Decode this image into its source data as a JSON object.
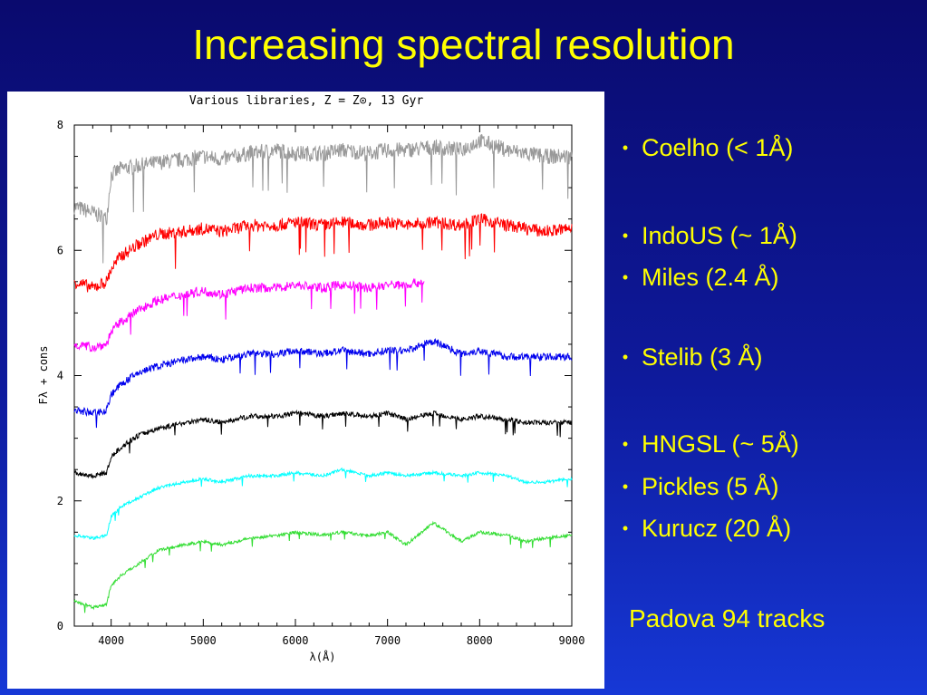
{
  "slide": {
    "title": "Increasing spectral resolution",
    "footer": "Padova 94 tracks"
  },
  "bullets": [
    "Coelho (< 1Å)",
    "IndoUS (~ 1Å)",
    "Miles (2.4 Å)",
    "Stelib (3 Å)",
    "HNGSL (~ 5Å)",
    "Pickles (5 Å)",
    "Kurucz (20 Å)"
  ],
  "colors": {
    "title": "#ffff00",
    "background": "#0e1a9c"
  },
  "chart_data": {
    "type": "line",
    "title": "Various libraries, Z = Z⊙, 13 Gyr",
    "xlabel": "λ(Å)",
    "ylabel": "Fλ + cons",
    "xlim": [
      3600,
      9000
    ],
    "ylim": [
      0,
      8
    ],
    "xticks": [
      4000,
      5000,
      6000,
      7000,
      8000,
      9000
    ],
    "yticks": [
      0,
      2,
      4,
      6,
      8
    ],
    "series": [
      {
        "color": "#999999",
        "noise": 0.25,
        "x": [
          3600,
          3800,
          3950,
          4000,
          4100,
          4300,
          4500,
          4800,
          5000,
          5200,
          5500,
          5800,
          6000,
          6300,
          6500,
          6800,
          7000,
          7200,
          7500,
          7800,
          8000,
          8300,
          8500,
          8700,
          9000
        ],
        "y": [
          6.7,
          6.6,
          6.5,
          7.2,
          7.3,
          7.35,
          7.4,
          7.45,
          7.5,
          7.45,
          7.55,
          7.6,
          7.55,
          7.55,
          7.6,
          7.55,
          7.6,
          7.6,
          7.65,
          7.6,
          7.75,
          7.6,
          7.55,
          7.5,
          7.5
        ]
      },
      {
        "color": "#ff0000",
        "noise": 0.2,
        "x": [
          3600,
          3800,
          3950,
          4000,
          4100,
          4300,
          4500,
          4800,
          5000,
          5200,
          5500,
          5800,
          6000,
          6300,
          6500,
          6800,
          7000,
          7200,
          7500,
          7800,
          8000,
          8300,
          8500,
          8700,
          9000
        ],
        "y": [
          5.5,
          5.4,
          5.5,
          5.7,
          5.9,
          6.1,
          6.25,
          6.3,
          6.35,
          6.3,
          6.4,
          6.4,
          6.45,
          6.4,
          6.45,
          6.4,
          6.45,
          6.4,
          6.45,
          6.4,
          6.5,
          6.4,
          6.35,
          6.3,
          6.35
        ]
      },
      {
        "color": "#ff00ff",
        "noise": 0.15,
        "x": [
          3600,
          3800,
          3950,
          4000,
          4100,
          4300,
          4500,
          4800,
          5000,
          5200,
          5500,
          5800,
          6000,
          6300,
          6500,
          6800,
          7000,
          7200,
          7400
        ],
        "y": [
          4.5,
          4.45,
          4.5,
          4.7,
          4.85,
          5.05,
          5.2,
          5.3,
          5.35,
          5.3,
          5.4,
          5.4,
          5.45,
          5.4,
          5.45,
          5.4,
          5.45,
          5.45,
          5.5
        ]
      },
      {
        "color": "#0000ee",
        "noise": 0.12,
        "x": [
          3600,
          3800,
          3950,
          4000,
          4100,
          4300,
          4500,
          4800,
          5000,
          5200,
          5500,
          5800,
          6000,
          6300,
          6500,
          6800,
          7000,
          7200,
          7500,
          7800,
          8000,
          8300,
          8500,
          8700,
          9000
        ],
        "y": [
          3.45,
          3.4,
          3.45,
          3.7,
          3.85,
          4.05,
          4.15,
          4.25,
          4.3,
          4.25,
          4.35,
          4.35,
          4.4,
          4.35,
          4.4,
          4.35,
          4.4,
          4.4,
          4.55,
          4.35,
          4.4,
          4.3,
          4.3,
          4.3,
          4.3
        ]
      },
      {
        "color": "#000000",
        "noise": 0.08,
        "x": [
          3600,
          3800,
          3950,
          4000,
          4100,
          4300,
          4500,
          4800,
          5000,
          5200,
          5500,
          5800,
          6000,
          6300,
          6500,
          6800,
          7000,
          7200,
          7500,
          7800,
          8000,
          8300,
          8500,
          8700,
          9000
        ],
        "y": [
          2.45,
          2.4,
          2.45,
          2.7,
          2.85,
          3.05,
          3.15,
          3.25,
          3.3,
          3.25,
          3.35,
          3.35,
          3.4,
          3.35,
          3.4,
          3.35,
          3.4,
          3.3,
          3.4,
          3.3,
          3.35,
          3.3,
          3.25,
          3.25,
          3.25
        ]
      },
      {
        "color": "#00ffff",
        "noise": 0.05,
        "x": [
          3600,
          3800,
          3950,
          4000,
          4100,
          4300,
          4500,
          4800,
          5000,
          5200,
          5500,
          5800,
          6000,
          6300,
          6500,
          6800,
          7000,
          7200,
          7500,
          7800,
          8000,
          8300,
          8500,
          8700,
          9000
        ],
        "y": [
          1.45,
          1.4,
          1.45,
          1.75,
          1.9,
          2.05,
          2.2,
          2.3,
          2.35,
          2.3,
          2.4,
          2.4,
          2.45,
          2.4,
          2.5,
          2.4,
          2.45,
          2.4,
          2.45,
          2.4,
          2.45,
          2.4,
          2.3,
          2.3,
          2.35
        ]
      },
      {
        "color": "#33dd33",
        "noise": 0.05,
        "x": [
          3600,
          3800,
          3950,
          4000,
          4100,
          4300,
          4500,
          4800,
          5000,
          5200,
          5500,
          5800,
          6000,
          6300,
          6500,
          6800,
          7000,
          7200,
          7500,
          7800,
          8000,
          8300,
          8500,
          8700,
          9000
        ],
        "y": [
          0.4,
          0.3,
          0.35,
          0.65,
          0.8,
          1.0,
          1.2,
          1.3,
          1.35,
          1.3,
          1.4,
          1.45,
          1.5,
          1.45,
          1.5,
          1.45,
          1.5,
          1.3,
          1.65,
          1.35,
          1.5,
          1.45,
          1.35,
          1.4,
          1.45
        ]
      }
    ]
  }
}
